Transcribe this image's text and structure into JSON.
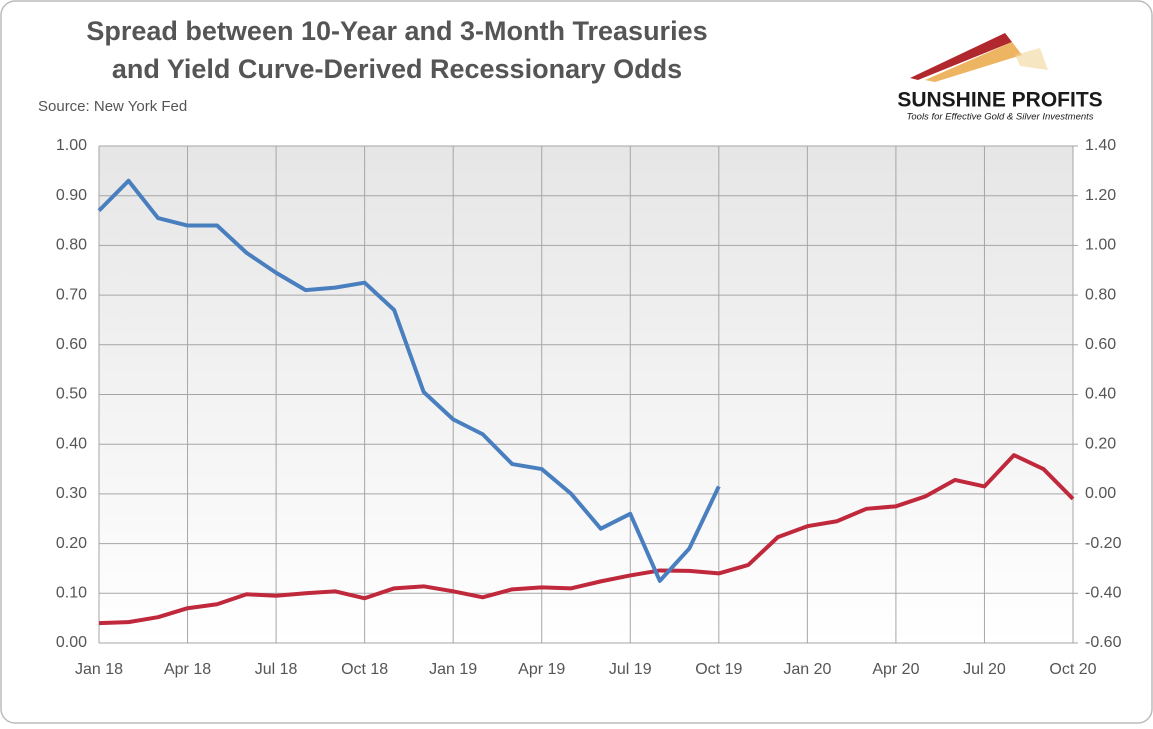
{
  "chart_data": {
    "type": "line",
    "title": [
      "Spread between 10-Year and 3-Month Treasuries",
      "and Yield Curve-Derived Recessionary Odds"
    ],
    "source": "Source: New York Fed",
    "logo": {
      "name": "SUNSHINE PROFITS",
      "tagline": "Tools for Effective Gold & Silver Investments"
    },
    "categories": [
      "Jan 18",
      null,
      null,
      "Apr 18",
      null,
      null,
      "Jul 18",
      null,
      null,
      "Oct 18",
      null,
      null,
      "Jan 19",
      null,
      null,
      "Apr 19",
      null,
      null,
      "Jul 19",
      null,
      null,
      "Oct 19",
      null,
      null,
      "Jan 20",
      null,
      null,
      "Apr 20",
      null,
      null,
      "Jul 20",
      null,
      null,
      "Oct 20"
    ],
    "series": [
      {
        "color": "#c0283c",
        "axis": "y",
        "values": [
          0.04,
          0.042,
          0.052,
          0.07,
          0.078,
          0.098,
          0.095,
          0.1,
          0.104,
          0.09,
          0.11,
          0.114,
          0.104,
          0.092,
          0.108,
          0.112,
          0.11,
          0.124,
          0.136,
          0.146,
          0.145,
          0.14,
          0.157,
          0.213,
          0.235,
          0.245,
          0.27,
          0.275,
          0.295,
          0.328,
          0.315,
          0.378,
          0.35,
          0.29
        ]
      },
      {
        "color": "#4a7fbf",
        "axis": "y2",
        "values": [
          1.14,
          1.26,
          1.11,
          1.08,
          1.08,
          0.97,
          0.89,
          0.82,
          0.83,
          0.85,
          0.74,
          0.41,
          0.3,
          0.24,
          0.12,
          0.1,
          0.0,
          -0.14,
          -0.08,
          -0.35,
          -0.22,
          0.03,
          null,
          null,
          null,
          null,
          null,
          null,
          null,
          null,
          null,
          null,
          null,
          null
        ]
      }
    ],
    "ylim": [
      0,
      1
    ],
    "yticks": [
      {
        "value": 0,
        "label": "0.00"
      },
      {
        "value": 0.1,
        "label": "0.10"
      },
      {
        "value": 0.2,
        "label": "0.20"
      },
      {
        "value": 0.3,
        "label": "0.30"
      },
      {
        "value": 0.4,
        "label": "0.40"
      },
      {
        "value": 0.5,
        "label": "0.50"
      },
      {
        "value": 0.6,
        "label": "0.60"
      },
      {
        "value": 0.7,
        "label": "0.70"
      },
      {
        "value": 0.8,
        "label": "0.80"
      },
      {
        "value": 0.9,
        "label": "0.90"
      },
      {
        "value": 1,
        "label": "1.00"
      }
    ],
    "y2lim": [
      -0.6,
      1.4
    ],
    "y2ticks": [
      {
        "value": -0.6,
        "label": "-0.60"
      },
      {
        "value": -0.4,
        "label": "-0.40"
      },
      {
        "value": -0.2,
        "label": "-0.20"
      },
      {
        "value": 0,
        "label": "0.00"
      },
      {
        "value": 0.2,
        "label": "0.20"
      },
      {
        "value": 0.4,
        "label": "0.40"
      },
      {
        "value": 0.6,
        "label": "0.60"
      },
      {
        "value": 0.8,
        "label": "0.80"
      },
      {
        "value": 1,
        "label": "1.00"
      },
      {
        "value": 1.2,
        "label": "1.20"
      },
      {
        "value": 1.4,
        "label": "1.40"
      }
    ],
    "grid": true
  }
}
